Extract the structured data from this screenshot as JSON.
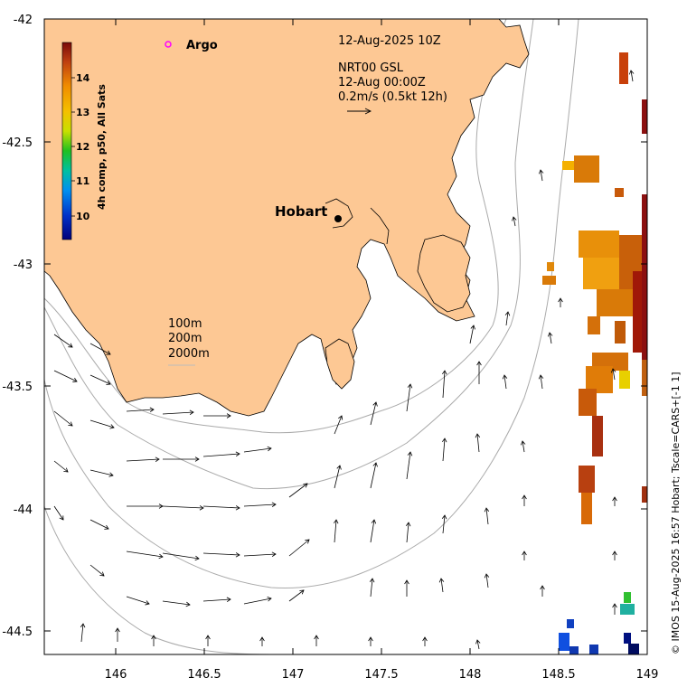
{
  "map": {
    "lon_range": [
      145.6,
      149.0
    ],
    "lat_range": [
      -44.6,
      -42.0
    ],
    "x_ticks": [
      "146",
      "146.5",
      "147",
      "147.5",
      "148",
      "148.5",
      "149"
    ],
    "y_ticks": [
      "-42",
      "-42.5",
      "-43",
      "-43.5",
      "-44",
      "-44.5"
    ]
  },
  "title": {
    "datetime": "12-Aug-2025 10Z",
    "product": "NRT00 GSL",
    "product_time": "12-Aug 00:00Z",
    "scale": "0.2m/s (0.5kt 12h)"
  },
  "legend": {
    "argo": "Argo",
    "contours": [
      "100m",
      "200m",
      "2000m"
    ]
  },
  "city": {
    "name": "Hobart",
    "lon": 147.27,
    "lat": -42.82
  },
  "colorbar": {
    "label": "4h comp, p50, All Sats",
    "ticks": [
      "14",
      "13",
      "12",
      "11",
      "10"
    ],
    "range": [
      9.4,
      14.9
    ]
  },
  "footer": "© IMOS 15-Aug-2025 16:57 Hobart; Tscale=CARS+[-1 1]",
  "colors": {
    "land": "#fdc894",
    "bathy": "#aaaaaa",
    "argo": "#ff00ff",
    "vectors": "#000000"
  }
}
